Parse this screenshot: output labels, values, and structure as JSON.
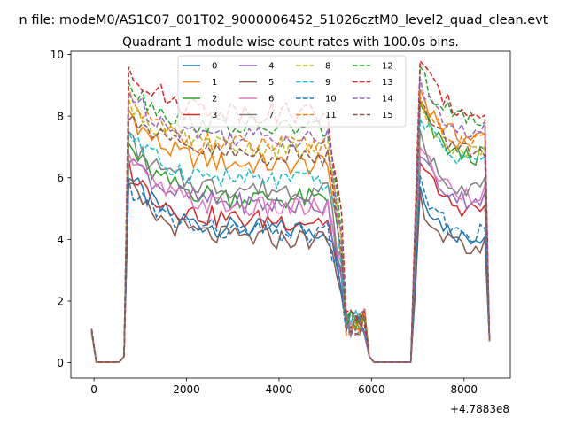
{
  "chart_data": {
    "type": "line",
    "suptitle": "n file: modeM0/AS1C07_001T02_9000006452_51026cztM0_level2_quad_clean.evt",
    "title": "Quadrant 1 module wise count rates with 100.0s bins.",
    "xlabel": "",
    "ylabel": "",
    "x_offset_label": "+4.7883e8",
    "xlim": [
      -500,
      9000
    ],
    "ylim": [
      -0.5,
      10.1
    ],
    "xticks": [
      0,
      2000,
      4000,
      6000,
      8000
    ],
    "xtick_labels": [
      "0",
      "2000",
      "4000",
      "6000",
      "8000"
    ],
    "yticks": [
      0,
      2,
      4,
      6,
      8,
      10
    ],
    "ytick_labels": [
      "0",
      "2",
      "4",
      "6",
      "8",
      "10"
    ],
    "grid": false,
    "legend_position": "top-center",
    "legend_columns": 4,
    "legend_fontsize": "small",
    "series": [
      {
        "name": "0",
        "color": "#1f77b4",
        "style": "solid",
        "plateau1": 4.3,
        "plateau2": 4.4
      },
      {
        "name": "1",
        "color": "#ff7f0e",
        "style": "solid",
        "plateau1": 6.4,
        "plateau2": 7.6
      },
      {
        "name": "2",
        "color": "#2ca02c",
        "style": "solid",
        "plateau1": 5.3,
        "plateau2": 7.0
      },
      {
        "name": "3",
        "color": "#d62728",
        "style": "solid",
        "plateau1": 4.6,
        "plateau2": 5.3
      },
      {
        "name": "4",
        "color": "#9467bd",
        "style": "solid",
        "plateau1": 5.1,
        "plateau2": 5.6
      },
      {
        "name": "5",
        "color": "#8c564b",
        "style": "solid",
        "plateau1": 4.0,
        "plateau2": 4.0
      },
      {
        "name": "6",
        "color": "#e377c2",
        "style": "solid",
        "plateau1": 5.0,
        "plateau2": 5.8
      },
      {
        "name": "7",
        "color": "#7f7f7f",
        "style": "solid",
        "plateau1": 5.6,
        "plateau2": 6.0
      },
      {
        "name": "8",
        "color": "#bcbd22",
        "style": "dashed",
        "plateau1": 6.9,
        "plateau2": 7.2
      },
      {
        "name": "9",
        "color": "#17becf",
        "style": "dashed",
        "plateau1": 5.9,
        "plateau2": 6.9
      },
      {
        "name": "10",
        "color": "#1f77b4",
        "style": "dashed",
        "plateau1": 4.2,
        "plateau2": 4.5
      },
      {
        "name": "11",
        "color": "#ff7f0e",
        "style": "dashed",
        "plateau1": 7.0,
        "plateau2": 7.4
      },
      {
        "name": "12",
        "color": "#2ca02c",
        "style": "dashed",
        "plateau1": 7.6,
        "plateau2": 8.2
      },
      {
        "name": "13",
        "color": "#d62728",
        "style": "dashed",
        "plateau1": 8.1,
        "plateau2": 8.5
      },
      {
        "name": "14",
        "color": "#9467bd",
        "style": "dashed",
        "plateau1": 7.3,
        "plateau2": 7.8
      },
      {
        "name": "15",
        "color": "#8c564b",
        "style": "dashed",
        "plateau1": 6.7,
        "plateau2": 7.2
      }
    ]
  }
}
